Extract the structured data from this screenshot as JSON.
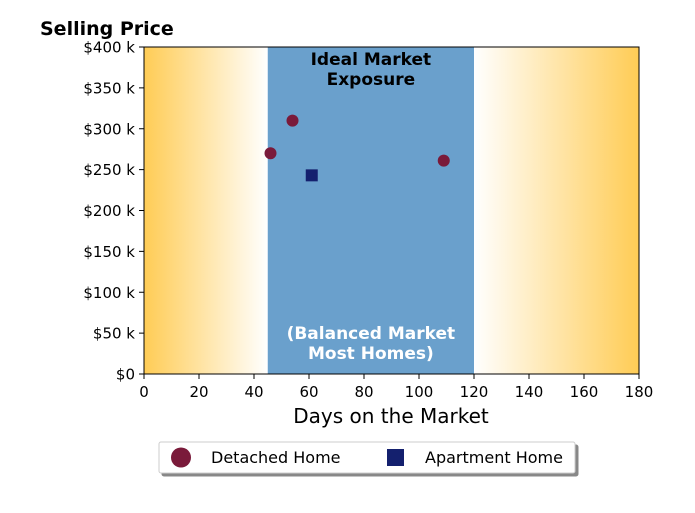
{
  "chart_data": {
    "type": "scatter",
    "title": "Selling Price",
    "xlabel": "Days on the Market",
    "ylabel": "",
    "xlim": [
      0,
      180
    ],
    "ylim": [
      0,
      400000
    ],
    "xticks": [
      0,
      20,
      40,
      60,
      80,
      100,
      120,
      140,
      160,
      180
    ],
    "xtick_labels": [
      "0",
      "20",
      "40",
      "60",
      "80",
      "100",
      "120",
      "140",
      "160",
      "180"
    ],
    "yticks": [
      0,
      50000,
      100000,
      150000,
      200000,
      250000,
      300000,
      350000,
      400000
    ],
    "ytick_labels": [
      "$0",
      "$50 k",
      "$100 k",
      "$150 k",
      "$200 k",
      "$250 k",
      "$300 k",
      "$350 k",
      "$400 k"
    ],
    "grid": false,
    "legend_position": "bottom-center",
    "band": {
      "x_range": [
        45,
        120
      ],
      "color": "#6aa0cc",
      "top_label": [
        "Ideal Market",
        "Exposure"
      ],
      "bottom_label": [
        "(Balanced Market",
        "Most Homes)"
      ]
    },
    "background_gradient": {
      "edge_color": "#ffcc55",
      "center_color": "#ffffff"
    },
    "series": [
      {
        "name": "Detached Home",
        "marker": "circle",
        "color": "#7a1a3a",
        "points": [
          {
            "x": 46,
            "y": 270000
          },
          {
            "x": 54,
            "y": 310000
          },
          {
            "x": 109,
            "y": 261000
          }
        ]
      },
      {
        "name": "Apartment Home",
        "marker": "square",
        "color": "#14206e",
        "points": [
          {
            "x": 61,
            "y": 243000
          }
        ]
      }
    ]
  }
}
